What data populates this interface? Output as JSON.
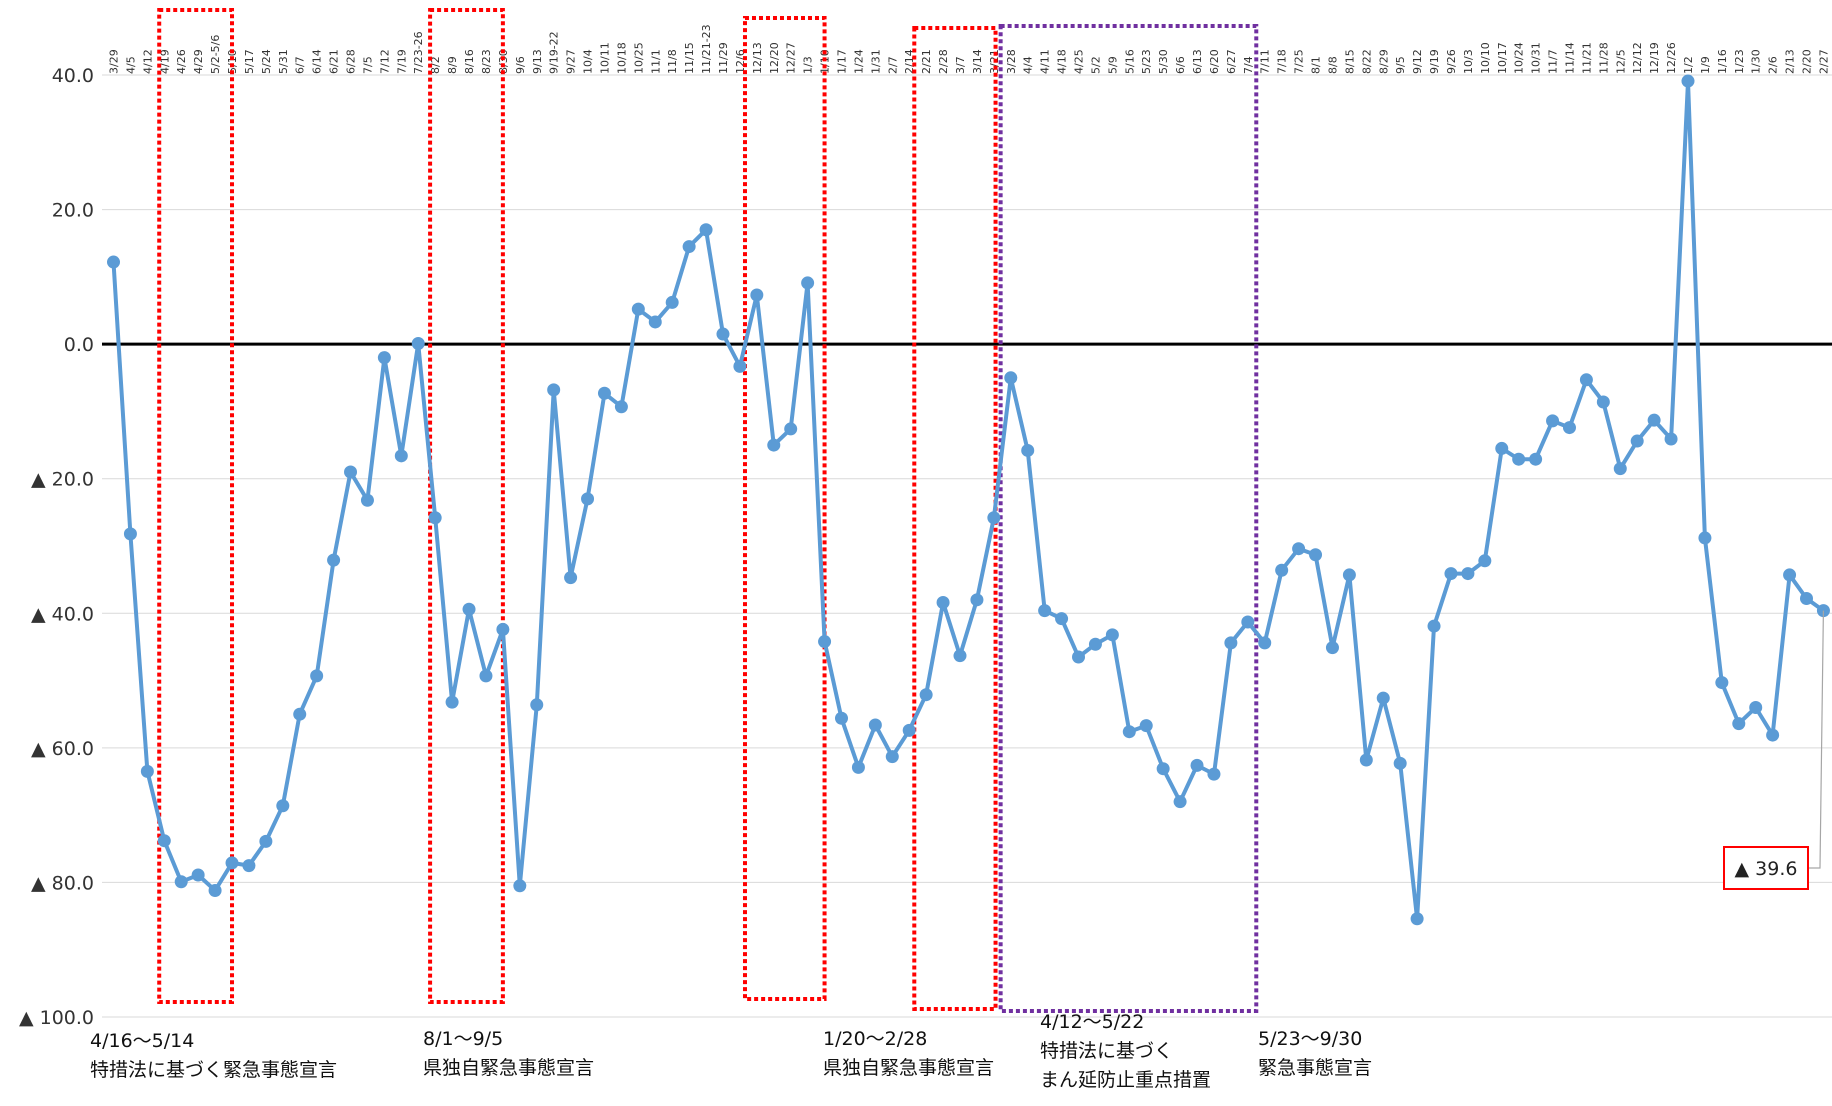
{
  "chart_data": {
    "type": "line",
    "title": "",
    "xlabel": "",
    "ylabel": "",
    "ylim": [
      -100,
      40
    ],
    "yticks": [
      {
        "value": 40,
        "label": "40.0"
      },
      {
        "value": 20,
        "label": "20.0"
      },
      {
        "value": 0,
        "label": "0.0"
      },
      {
        "value": -20,
        "label": "▲ 20.0"
      },
      {
        "value": -40,
        "label": "▲ 40.0"
      },
      {
        "value": -60,
        "label": "▲ 60.0"
      },
      {
        "value": -80,
        "label": "▲ 80.0"
      },
      {
        "value": -100,
        "label": "▲ 100.0"
      }
    ],
    "grid": true,
    "legend": "none",
    "series_color": "#5B9BD5",
    "zero_line_color": "#000000",
    "x": [
      "3/29",
      "4/5",
      "4/12",
      "4/19",
      "4/26",
      "4/29",
      "5/2-5/6",
      "5/10",
      "5/17",
      "5/24",
      "5/31",
      "6/7",
      "6/14",
      "6/21",
      "6/28",
      "7/5",
      "7/12",
      "7/19",
      "7/23-26",
      "8/2",
      "8/9",
      "8/16",
      "8/23",
      "8/30",
      "9/6",
      "9/13",
      "9/19-22",
      "9/27",
      "10/4",
      "10/11",
      "10/18",
      "10/25",
      "11/1",
      "11/8",
      "11/15",
      "11/21-23",
      "11/29",
      "12/6",
      "12/13",
      "12/20",
      "12/27",
      "1/3",
      "1/10",
      "1/17",
      "1/24",
      "1/31",
      "2/7",
      "2/14",
      "2/21",
      "2/28",
      "3/7",
      "3/14",
      "3/21",
      "3/28",
      "4/4",
      "4/11",
      "4/18",
      "4/25",
      "5/2",
      "5/9",
      "5/16",
      "5/23",
      "5/30",
      "6/6",
      "6/13",
      "6/20",
      "6/27",
      "7/4",
      "7/11",
      "7/18",
      "7/25",
      "8/1",
      "8/8",
      "8/15",
      "8/22",
      "8/29",
      "9/5",
      "9/12",
      "9/19",
      "9/26",
      "10/3",
      "10/10",
      "10/17",
      "10/24",
      "10/31",
      "11/7",
      "11/14",
      "11/21",
      "11/28",
      "12/5",
      "12/12",
      "12/19",
      "12/26",
      "1/2",
      "1/9",
      "1/16",
      "1/23",
      "1/30",
      "2/6",
      "2/13",
      "2/20",
      "2/27"
    ],
    "values": [
      12.2,
      -28.2,
      -63.5,
      -73.8,
      -79.9,
      -78.9,
      -81.2,
      -77.1,
      -77.5,
      -73.9,
      -68.6,
      -55.0,
      -49.3,
      -32.1,
      -19.0,
      -23.2,
      -2.0,
      -16.6,
      0.1,
      -25.8,
      -53.2,
      -39.4,
      -49.3,
      -42.4,
      -80.5,
      -53.6,
      -6.8,
      -34.7,
      -23.0,
      -7.3,
      -9.3,
      5.2,
      3.3,
      6.2,
      14.5,
      17.0,
      1.5,
      -3.3,
      7.3,
      -15.0,
      -12.6,
      9.1,
      -44.2,
      -55.6,
      -62.9,
      -56.6,
      -61.3,
      -57.4,
      -52.1,
      -38.4,
      -46.3,
      -38.0,
      -25.8,
      -5.0,
      -15.8,
      -39.6,
      -40.8,
      -46.5,
      -44.6,
      -43.2,
      -57.6,
      -56.7,
      -63.1,
      -68.0,
      -62.6,
      -63.9,
      -44.4,
      -41.3,
      -44.4,
      -33.6,
      -30.4,
      -31.3,
      -45.1,
      -34.3,
      -61.8,
      -52.6,
      -62.3,
      -85.4,
      -41.9,
      -34.1,
      -34.1,
      -32.2,
      -15.5,
      -17.1,
      -17.1,
      -11.4,
      -12.4,
      -5.3,
      -8.6,
      -18.5,
      -14.4,
      -11.3,
      -14.1,
      39.1,
      -28.8,
      -50.3,
      -56.4,
      -54.0,
      -58.1,
      -34.3,
      -37.8,
      -39.6
    ],
    "annotations": [
      {
        "line1": "4/16～5/14",
        "line2": "特措法に基づく緊急事態宣言",
        "color": "#FF0000"
      },
      {
        "line1": "8/1～9/5",
        "line2": "県独自緊急事態宣言",
        "color": "#FF0000"
      },
      {
        "line1": "1/20～2/28",
        "line2": "県独自緊急事態宣言",
        "color": "#FF0000"
      },
      {
        "line1": "4/12～5/22",
        "line2": "特措法に基づく",
        "line3": "まん延防止重点措置",
        "color": "#FF0000"
      },
      {
        "line1": "5/23～9/30",
        "line2": "緊急事態宣言",
        "color": "#7030A0"
      }
    ],
    "callout": {
      "label": "▲ 39.6",
      "border_color": "#FF0000"
    }
  }
}
